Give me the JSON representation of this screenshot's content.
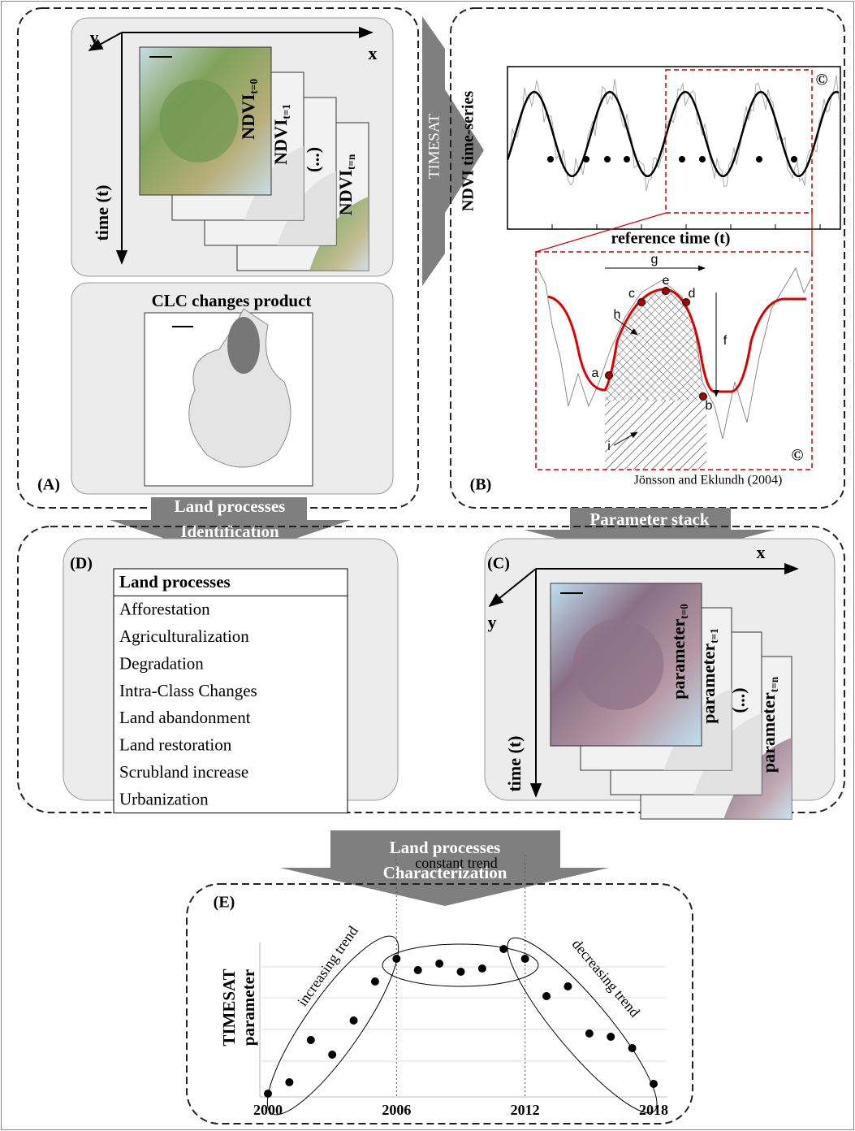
{
  "panel_a": {
    "label": "(A)",
    "axis_x": "x",
    "axis_y": "y",
    "axis_t": "time (t)",
    "layers": [
      {
        "name": "NDVI",
        "sub": "t=0"
      },
      {
        "name": "NDVI",
        "sub": "t=1"
      },
      {
        "name": "(...)"
      },
      {
        "name": "NDVI",
        "sub": "t=n"
      }
    ],
    "clc_title": "CLC changes product"
  },
  "arrows": {
    "timesat": "TIMESAT",
    "identification": [
      "Land processes",
      "Identification"
    ],
    "parameter_stack": "Parameter stack",
    "characterization": [
      "Land processes",
      "Characterization"
    ]
  },
  "panel_b": {
    "label": "(B)",
    "y_label": "NDVI time-series",
    "x_label": "reference time (t)",
    "copyrights": [
      "©",
      "©"
    ],
    "letters": [
      "a",
      "b",
      "c",
      "d",
      "e",
      "f",
      "g",
      "h",
      "i"
    ],
    "citation": "Jönsson and Eklundh (2004)"
  },
  "panel_c": {
    "label": "(C)",
    "axis_x": "x",
    "axis_y": "y",
    "axis_t": "time (t)",
    "layers": [
      {
        "name": "parameter",
        "sub": "t=0"
      },
      {
        "name": "parameter",
        "sub": "t=1"
      },
      {
        "name": "(...)"
      },
      {
        "name": "parameter",
        "sub": "t=n"
      }
    ]
  },
  "panel_d": {
    "label": "(D)",
    "table": {
      "header": "Land processes",
      "rows": [
        "Afforestation",
        "Agriculturalization",
        "Degradation",
        "Intra-Class Changes",
        "Land abandonment",
        "Land restoration",
        "Scrubland increase",
        "Urbanization"
      ]
    }
  },
  "panel_e": {
    "label": "(E)",
    "y_label": [
      "TIMESAT",
      "parameter"
    ],
    "segments": [
      "increasing trend",
      "constant trend",
      "decreasing trend"
    ],
    "chart": {
      "type": "scatter",
      "x": [
        2000,
        2001,
        2002,
        2003,
        2004,
        2005,
        2006,
        2007,
        2008,
        2009,
        2010,
        2011,
        2012,
        2013,
        2014,
        2015,
        2016,
        2017,
        2018
      ],
      "values": [
        2,
        9,
        35,
        26,
        47,
        71,
        85,
        78,
        82,
        77,
        79,
        91,
        85,
        62,
        68,
        39,
        37,
        30,
        8
      ],
      "color": "#000000",
      "xlim": [
        2000,
        2018
      ],
      "xticks": [
        2000,
        2006,
        2012,
        2018
      ],
      "ylim": [
        0,
        100
      ]
    }
  }
}
